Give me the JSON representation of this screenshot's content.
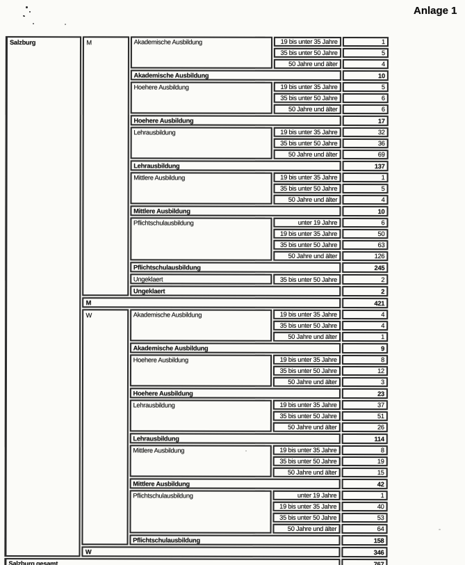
{
  "page": {
    "annotation": "Anlage 1",
    "colors": {
      "paper": "#fbfbf8",
      "ink": "#181818",
      "border": "#2a2a2a"
    }
  },
  "table": {
    "region": "Salzburg",
    "grand_total_label": "Salzburg gesamt",
    "grand_total": "767",
    "sections": [
      {
        "gender": "M",
        "total": "421",
        "groups": [
          {
            "education": "Akademische Ausbildung",
            "subtotal": "10",
            "rows": [
              [
                "19 bis unter 35 Jahre",
                "1"
              ],
              [
                "35 bis unter 50 Jahre",
                "5"
              ],
              [
                "50 Jahre und älter",
                "4"
              ]
            ]
          },
          {
            "education": "Hoehere Ausbildung",
            "subtotal": "17",
            "rows": [
              [
                "19 bis unter 35 Jahre",
                "5"
              ],
              [
                "35 bis unter 50 Jahre",
                "6"
              ],
              [
                "50 Jahre und älter",
                "6"
              ]
            ]
          },
          {
            "education": "Lehrausbildung",
            "subtotal": "137",
            "rows": [
              [
                "19 bis unter 35 Jahre",
                "32"
              ],
              [
                "35 bis unter 50 Jahre",
                "36"
              ],
              [
                "50 Jahre und älter",
                "69"
              ]
            ]
          },
          {
            "education": "Mittlere Ausbildung",
            "subtotal": "10",
            "rows": [
              [
                "19 bis unter 35 Jahre",
                "1"
              ],
              [
                "35 bis unter 50 Jahre",
                "5"
              ],
              [
                "50 Jahre und älter",
                "4"
              ]
            ]
          },
          {
            "education": "Pflichtschulausbildung",
            "subtotal": "245",
            "rows": [
              [
                "unter 19 Jahre",
                "6"
              ],
              [
                "19 bis unter 35 Jahre",
                "50"
              ],
              [
                "35 bis unter 50 Jahre",
                "63"
              ],
              [
                "50 Jahre und älter",
                "126"
              ]
            ]
          },
          {
            "education": "Ungeklaert",
            "subtotal": "2",
            "rows": [
              [
                "35 bis unter 50 Jahre",
                "2"
              ]
            ]
          }
        ]
      },
      {
        "gender": "W",
        "total": "346",
        "groups": [
          {
            "education": "Akademische Ausbildung",
            "subtotal": "9",
            "rows": [
              [
                "19 bis unter 35 Jahre",
                "4"
              ],
              [
                "35 bis unter 50 Jahre",
                "4"
              ],
              [
                "50 Jahre und älter",
                "1"
              ]
            ]
          },
          {
            "education": "Hoehere Ausbildung",
            "subtotal": "23",
            "rows": [
              [
                "19 bis unter 35 Jahre",
                "8"
              ],
              [
                "35 bis unter 50 Jahre",
                "12"
              ],
              [
                "50 Jahre und älter",
                "3"
              ]
            ]
          },
          {
            "education": "Lehrausbildung",
            "subtotal": "114",
            "rows": [
              [
                "19 bis unter 35 Jahre",
                "37"
              ],
              [
                "35 bis unter 50 Jahre",
                "51"
              ],
              [
                "50 Jahre und älter",
                "26"
              ]
            ]
          },
          {
            "education": "Mittlere Ausbildung",
            "subtotal": "42",
            "rows": [
              [
                "19 bis unter 35 Jahre",
                "8"
              ],
              [
                "35 bis unter 50 Jahre",
                "19"
              ],
              [
                "50 Jahre und älter",
                "15"
              ]
            ]
          },
          {
            "education": "Pflichtschulausbildung",
            "subtotal": "158",
            "rows": [
              [
                "unter 19 Jahre",
                "1"
              ],
              [
                "19 bis unter 35 Jahre",
                "40"
              ],
              [
                "35 bis unter 50 Jahre",
                "53"
              ],
              [
                "50 Jahre und älter",
                "64"
              ]
            ]
          }
        ]
      }
    ]
  }
}
